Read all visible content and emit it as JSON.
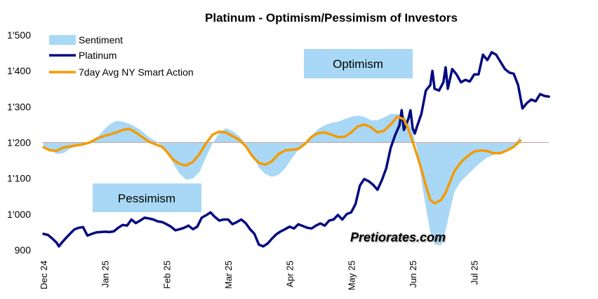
{
  "chart_data": {
    "type": "line",
    "title": "Platinum - Optimism/Pessimism of Investors",
    "xlabel": "",
    "ylabel": "",
    "ylim": [
      900,
      1500
    ],
    "baseline": 1200,
    "yticks": [
      900,
      1000,
      1100,
      1200,
      1300,
      1400,
      1500
    ],
    "ytick_labels": [
      "900",
      "1'000",
      "1'100",
      "1'200",
      "1'300",
      "1'400",
      "1'500"
    ],
    "xlim": [
      0,
      230
    ],
    "xticks": [
      {
        "label": "Dec 24",
        "x": 0
      },
      {
        "label": "Jan 25",
        "x": 28
      },
      {
        "label": "Feb 25",
        "x": 56
      },
      {
        "label": "Mar 25",
        "x": 84
      },
      {
        "label": "Apr 25",
        "x": 112
      },
      {
        "label": "May 25",
        "x": 140
      },
      {
        "label": "Jun 25",
        "x": 168
      },
      {
        "label": "Jul 25",
        "x": 196
      }
    ],
    "legend": {
      "position": "top-left",
      "entries": [
        "Sentiment",
        "Platinum",
        "7day Avg NY Smart Action"
      ]
    },
    "series": [
      {
        "name": "Sentiment",
        "kind": "area",
        "color": "#a8d8f5",
        "points": [
          [
            0,
            1185
          ],
          [
            3,
            1180
          ],
          [
            6,
            1168
          ],
          [
            9,
            1170
          ],
          [
            12,
            1182
          ],
          [
            15,
            1190
          ],
          [
            18,
            1195
          ],
          [
            21,
            1200
          ],
          [
            24,
            1212
          ],
          [
            27,
            1232
          ],
          [
            30,
            1250
          ],
          [
            33,
            1260
          ],
          [
            36,
            1258
          ],
          [
            40,
            1250
          ],
          [
            44,
            1236
          ],
          [
            48,
            1215
          ],
          [
            52,
            1200
          ],
          [
            56,
            1180
          ],
          [
            59,
            1142
          ],
          [
            62,
            1112
          ],
          [
            65,
            1096
          ],
          [
            68,
            1100
          ],
          [
            71,
            1118
          ],
          [
            74,
            1160
          ],
          [
            77,
            1198
          ],
          [
            80,
            1226
          ],
          [
            83,
            1240
          ],
          [
            86,
            1232
          ],
          [
            89,
            1218
          ],
          [
            92,
            1196
          ],
          [
            95,
            1168
          ],
          [
            98,
            1130
          ],
          [
            101,
            1112
          ],
          [
            104,
            1104
          ],
          [
            107,
            1110
          ],
          [
            110,
            1128
          ],
          [
            113,
            1155
          ],
          [
            116,
            1180
          ],
          [
            119,
            1198
          ],
          [
            122,
            1220
          ],
          [
            125,
            1238
          ],
          [
            128,
            1248
          ],
          [
            131,
            1255
          ],
          [
            134,
            1258
          ],
          [
            137,
            1265
          ],
          [
            140,
            1272
          ],
          [
            143,
            1275
          ],
          [
            146,
            1272
          ],
          [
            149,
            1262
          ],
          [
            152,
            1262
          ],
          [
            155,
            1270
          ],
          [
            158,
            1280
          ],
          [
            161,
            1280
          ],
          [
            164,
            1275
          ],
          [
            166,
            1260
          ],
          [
            168,
            1230
          ],
          [
            170,
            1182
          ],
          [
            172,
            1095
          ],
          [
            174,
            1020
          ],
          [
            176,
            950
          ],
          [
            178,
            915
          ],
          [
            181,
            913
          ],
          [
            183,
            955
          ],
          [
            185,
            1010
          ],
          [
            187,
            1062
          ],
          [
            190,
            1092
          ],
          [
            193,
            1110
          ],
          [
            196,
            1128
          ],
          [
            199,
            1145
          ],
          [
            202,
            1158
          ],
          [
            206,
            1168
          ],
          [
            210,
            1175
          ],
          [
            214,
            1190
          ],
          [
            217,
            1218
          ]
        ]
      },
      {
        "name": "Platinum",
        "kind": "line",
        "color": "#000a80",
        "points": [
          [
            0,
            945
          ],
          [
            2,
            942
          ],
          [
            4,
            932
          ],
          [
            6,
            920
          ],
          [
            7,
            910
          ],
          [
            8,
            918
          ],
          [
            10,
            932
          ],
          [
            12,
            945
          ],
          [
            14,
            957
          ],
          [
            16,
            962
          ],
          [
            18,
            964
          ],
          [
            20,
            940
          ],
          [
            22,
            945
          ],
          [
            24,
            949
          ],
          [
            26,
            950
          ],
          [
            28,
            951
          ],
          [
            30,
            950
          ],
          [
            32,
            952
          ],
          [
            34,
            962
          ],
          [
            36,
            970
          ],
          [
            38,
            968
          ],
          [
            40,
            985
          ],
          [
            42,
            975
          ],
          [
            44,
            982
          ],
          [
            46,
            990
          ],
          [
            48,
            988
          ],
          [
            50,
            985
          ],
          [
            52,
            980
          ],
          [
            54,
            978
          ],
          [
            56,
            972
          ],
          [
            58,
            965
          ],
          [
            60,
            955
          ],
          [
            62,
            958
          ],
          [
            64,
            962
          ],
          [
            66,
            968
          ],
          [
            68,
            958
          ],
          [
            70,
            965
          ],
          [
            72,
            990
          ],
          [
            74,
            997
          ],
          [
            76,
            1005
          ],
          [
            78,
            992
          ],
          [
            80,
            982
          ],
          [
            82,
            985
          ],
          [
            84,
            985
          ],
          [
            86,
            972
          ],
          [
            88,
            978
          ],
          [
            90,
            985
          ],
          [
            92,
            975
          ],
          [
            94,
            958
          ],
          [
            96,
            945
          ],
          [
            98,
            915
          ],
          [
            100,
            910
          ],
          [
            102,
            918
          ],
          [
            104,
            932
          ],
          [
            106,
            944
          ],
          [
            108,
            952
          ],
          [
            110,
            958
          ],
          [
            112,
            965
          ],
          [
            114,
            960
          ],
          [
            116,
            972
          ],
          [
            118,
            967
          ],
          [
            120,
            962
          ],
          [
            122,
            960
          ],
          [
            124,
            968
          ],
          [
            126,
            974
          ],
          [
            128,
            968
          ],
          [
            130,
            982
          ],
          [
            132,
            985
          ],
          [
            134,
            998
          ],
          [
            136,
            985
          ],
          [
            138,
            1000
          ],
          [
            140,
            1005
          ],
          [
            142,
            1028
          ],
          [
            144,
            1080
          ],
          [
            146,
            1098
          ],
          [
            148,
            1092
          ],
          [
            150,
            1082
          ],
          [
            152,
            1068
          ],
          [
            154,
            1095
          ],
          [
            156,
            1128
          ],
          [
            158,
            1185
          ],
          [
            160,
            1220
          ],
          [
            162,
            1248
          ],
          [
            163,
            1290
          ],
          [
            164,
            1235
          ],
          [
            166,
            1265
          ],
          [
            167,
            1290
          ],
          [
            168,
            1240
          ],
          [
            169,
            1225
          ],
          [
            170,
            1245
          ],
          [
            172,
            1280
          ],
          [
            174,
            1345
          ],
          [
            176,
            1360
          ],
          [
            177,
            1400
          ],
          [
            178,
            1350
          ],
          [
            180,
            1345
          ],
          [
            182,
            1368
          ],
          [
            183,
            1410
          ],
          [
            184,
            1350
          ],
          [
            186,
            1405
          ],
          [
            188,
            1390
          ],
          [
            190,
            1368
          ],
          [
            192,
            1375
          ],
          [
            194,
            1370
          ],
          [
            196,
            1390
          ],
          [
            198,
            1390
          ],
          [
            200,
            1445
          ],
          [
            202,
            1430
          ],
          [
            204,
            1452
          ],
          [
            206,
            1445
          ],
          [
            208,
            1425
          ],
          [
            210,
            1405
          ],
          [
            212,
            1395
          ],
          [
            214,
            1392
          ],
          [
            216,
            1360
          ],
          [
            218,
            1295
          ],
          [
            220,
            1310
          ],
          [
            222,
            1320
          ],
          [
            224,
            1315
          ],
          [
            226,
            1335
          ],
          [
            228,
            1330
          ],
          [
            230,
            1328
          ]
        ]
      },
      {
        "name": "7day Avg NY Smart Action",
        "kind": "line",
        "color": "#f59a00",
        "points": [
          [
            0,
            1187
          ],
          [
            3,
            1178
          ],
          [
            6,
            1177
          ],
          [
            9,
            1186
          ],
          [
            12,
            1189
          ],
          [
            15,
            1192
          ],
          [
            18,
            1195
          ],
          [
            21,
            1200
          ],
          [
            24,
            1210
          ],
          [
            27,
            1217
          ],
          [
            30,
            1222
          ],
          [
            33,
            1228
          ],
          [
            36,
            1235
          ],
          [
            39,
            1238
          ],
          [
            42,
            1228
          ],
          [
            45,
            1215
          ],
          [
            48,
            1202
          ],
          [
            51,
            1195
          ],
          [
            54,
            1188
          ],
          [
            56,
            1175
          ],
          [
            59,
            1152
          ],
          [
            62,
            1140
          ],
          [
            65,
            1136
          ],
          [
            68,
            1146
          ],
          [
            71,
            1168
          ],
          [
            74,
            1198
          ],
          [
            77,
            1222
          ],
          [
            80,
            1230
          ],
          [
            83,
            1228
          ],
          [
            86,
            1218
          ],
          [
            89,
            1208
          ],
          [
            92,
            1190
          ],
          [
            95,
            1162
          ],
          [
            98,
            1143
          ],
          [
            101,
            1138
          ],
          [
            104,
            1148
          ],
          [
            107,
            1168
          ],
          [
            110,
            1178
          ],
          [
            113,
            1180
          ],
          [
            116,
            1182
          ],
          [
            119,
            1196
          ],
          [
            122,
            1216
          ],
          [
            125,
            1226
          ],
          [
            128,
            1228
          ],
          [
            131,
            1222
          ],
          [
            134,
            1215
          ],
          [
            137,
            1216
          ],
          [
            140,
            1228
          ],
          [
            143,
            1245
          ],
          [
            146,
            1250
          ],
          [
            149,
            1243
          ],
          [
            152,
            1228
          ],
          [
            155,
            1233
          ],
          [
            158,
            1250
          ],
          [
            161,
            1272
          ],
          [
            164,
            1265
          ],
          [
            166,
            1238
          ],
          [
            168,
            1202
          ],
          [
            170,
            1165
          ],
          [
            172,
            1125
          ],
          [
            174,
            1080
          ],
          [
            176,
            1040
          ],
          [
            178,
            1030
          ],
          [
            181,
            1040
          ],
          [
            183,
            1060
          ],
          [
            185,
            1090
          ],
          [
            187,
            1120
          ],
          [
            190,
            1145
          ],
          [
            193,
            1162
          ],
          [
            196,
            1175
          ],
          [
            199,
            1178
          ],
          [
            202,
            1176
          ],
          [
            205,
            1170
          ],
          [
            208,
            1170
          ],
          [
            211,
            1178
          ],
          [
            214,
            1188
          ],
          [
            217,
            1205
          ]
        ]
      }
    ],
    "annotations": [
      {
        "text": "Optimism",
        "region": "upper-center"
      },
      {
        "text": "Pessimism",
        "region": "lower-left"
      },
      {
        "text": "Pretiorates.com",
        "region": "lower-center",
        "italic": true
      }
    ]
  }
}
